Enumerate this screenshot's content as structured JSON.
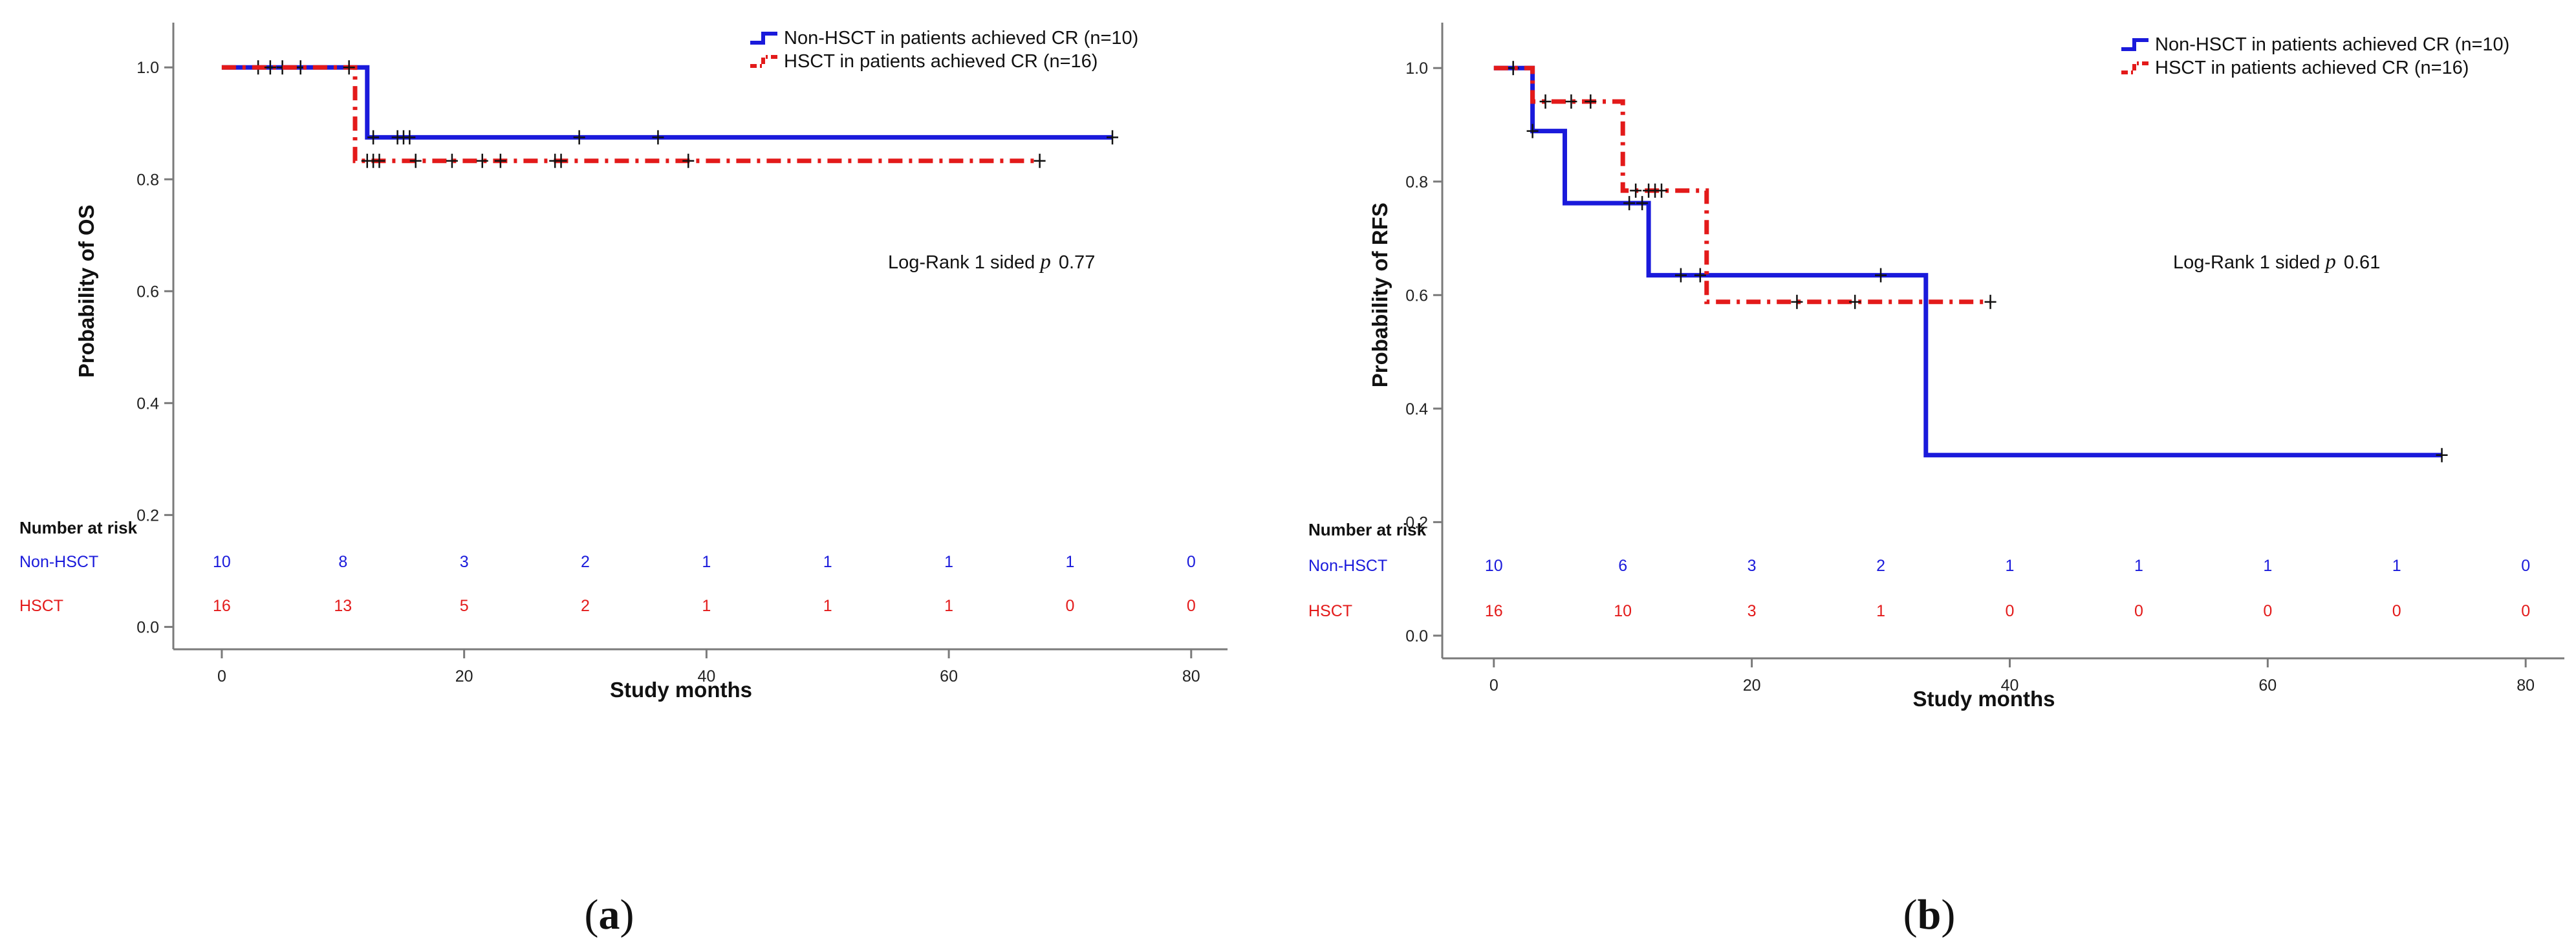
{
  "colors": {
    "non_hsct": "#1a1adb",
    "hsct": "#e31a1a",
    "axis": "#7a7a7a",
    "text": "#111111"
  },
  "chart_data": [
    {
      "type": "line",
      "panel_label_open": "(",
      "panel_label_letter": "a",
      "panel_label_close": ")",
      "xlabel": "Study months",
      "ylabel": "Probability of OS",
      "xlim": [
        -4,
        83
      ],
      "ylim": [
        -0.04,
        1.08
      ],
      "x_ticks": [
        "0",
        "20",
        "40",
        "60",
        "80"
      ],
      "y_ticks": [
        "0.0",
        "0.2",
        "0.4",
        "0.6",
        "0.8",
        "1.0"
      ],
      "annotation_prefix": "Log-Rank 1 sided",
      "annotation_symbol": "p",
      "annotation_value": "0.77",
      "series": [
        {
          "name": "Non-HSCT in patients achieved CR (n=10)",
          "key": "non_hsct",
          "steps": [
            [
              0,
              1.0
            ],
            [
              12,
              1.0
            ],
            [
              12,
              0.875
            ],
            [
              73.5,
              0.875
            ]
          ],
          "censored": [
            [
              3,
              1.0
            ],
            [
              5,
              1.0
            ],
            [
              6.5,
              1.0
            ],
            [
              12.5,
              0.875
            ],
            [
              14.5,
              0.875
            ],
            [
              15,
              0.875
            ],
            [
              15.5,
              0.875
            ],
            [
              29.5,
              0.875
            ],
            [
              36,
              0.875
            ],
            [
              73.5,
              0.875
            ]
          ]
        },
        {
          "name": "HSCT in patients achieved CR (n=16)",
          "key": "hsct",
          "steps": [
            [
              0,
              1.0
            ],
            [
              11,
              1.0
            ],
            [
              11,
              0.833
            ],
            [
              67.5,
              0.833
            ]
          ],
          "censored": [
            [
              4,
              1.0
            ],
            [
              10.5,
              1.0
            ],
            [
              12,
              0.833
            ],
            [
              12.5,
              0.833
            ],
            [
              13,
              0.833
            ],
            [
              16,
              0.833
            ],
            [
              19,
              0.833
            ],
            [
              21.5,
              0.833
            ],
            [
              23,
              0.833
            ],
            [
              27.5,
              0.833
            ],
            [
              28,
              0.833
            ],
            [
              38.5,
              0.833
            ],
            [
              67.5,
              0.833
            ]
          ]
        }
      ],
      "risk_table": {
        "header": "Number at risk",
        "rows": [
          {
            "label": "Non-HSCT",
            "key": "non_hsct",
            "values": [
              "10",
              "8",
              "3",
              "2",
              "1",
              "1",
              "1",
              "1",
              "0"
            ]
          },
          {
            "label": "HSCT",
            "key": "hsct",
            "values": [
              "16",
              "13",
              "5",
              "2",
              "1",
              "1",
              "1",
              "0",
              "0"
            ]
          }
        ],
        "times": [
          0,
          10,
          20,
          30,
          40,
          50,
          60,
          70,
          80
        ]
      }
    },
    {
      "type": "line",
      "panel_label_open": "(",
      "panel_label_letter": "b",
      "panel_label_close": ")",
      "xlabel": "Study months",
      "ylabel": "Probability of RFS",
      "xlim": [
        -4,
        83
      ],
      "ylim": [
        -0.04,
        1.08
      ],
      "x_ticks": [
        "0",
        "20",
        "40",
        "60",
        "80"
      ],
      "y_ticks": [
        "0.0",
        "0.2",
        "0.4",
        "0.6",
        "0.8",
        "1.0"
      ],
      "annotation_prefix": "Log-Rank 1 sided",
      "annotation_symbol": "p",
      "annotation_value": "0.61",
      "series": [
        {
          "name": "Non-HSCT in patients achieved CR (n=10)",
          "key": "non_hsct",
          "steps": [
            [
              0,
              1.0
            ],
            [
              3,
              1.0
            ],
            [
              3,
              0.889
            ],
            [
              5.5,
              0.889
            ],
            [
              5.5,
              0.762
            ],
            [
              12,
              0.762
            ],
            [
              12,
              0.635
            ],
            [
              33.5,
              0.635
            ],
            [
              33.5,
              0.318
            ],
            [
              73.5,
              0.318
            ]
          ],
          "censored": [
            [
              1.5,
              1.0
            ],
            [
              3,
              0.889
            ],
            [
              10.5,
              0.762
            ],
            [
              11.5,
              0.762
            ],
            [
              14.5,
              0.635
            ],
            [
              16,
              0.635
            ],
            [
              30,
              0.635
            ],
            [
              73.5,
              0.318
            ]
          ]
        },
        {
          "name": "HSCT in patients achieved CR (n=16)",
          "key": "hsct",
          "steps": [
            [
              0,
              1.0
            ],
            [
              3,
              1.0
            ],
            [
              3,
              0.941
            ],
            [
              10,
              0.941
            ],
            [
              10,
              0.784
            ],
            [
              16.5,
              0.784
            ],
            [
              16.5,
              0.588
            ],
            [
              38.5,
              0.588
            ]
          ],
          "censored": [
            [
              4,
              0.941
            ],
            [
              6,
              0.941
            ],
            [
              7.5,
              0.941
            ],
            [
              11,
              0.784
            ],
            [
              12,
              0.784
            ],
            [
              12.5,
              0.784
            ],
            [
              13,
              0.784
            ],
            [
              23.5,
              0.588
            ],
            [
              28,
              0.588
            ],
            [
              38.5,
              0.588
            ]
          ]
        }
      ],
      "risk_table": {
        "header": "Number at risk",
        "rows": [
          {
            "label": "Non-HSCT",
            "key": "non_hsct",
            "values": [
              "10",
              "6",
              "3",
              "2",
              "1",
              "1",
              "1",
              "1",
              "0"
            ]
          },
          {
            "label": "HSCT",
            "key": "hsct",
            "values": [
              "16",
              "10",
              "3",
              "1",
              "0",
              "0",
              "0",
              "0",
              "0"
            ]
          }
        ],
        "times": [
          0,
          10,
          20,
          30,
          40,
          50,
          60,
          70,
          80
        ]
      }
    }
  ]
}
